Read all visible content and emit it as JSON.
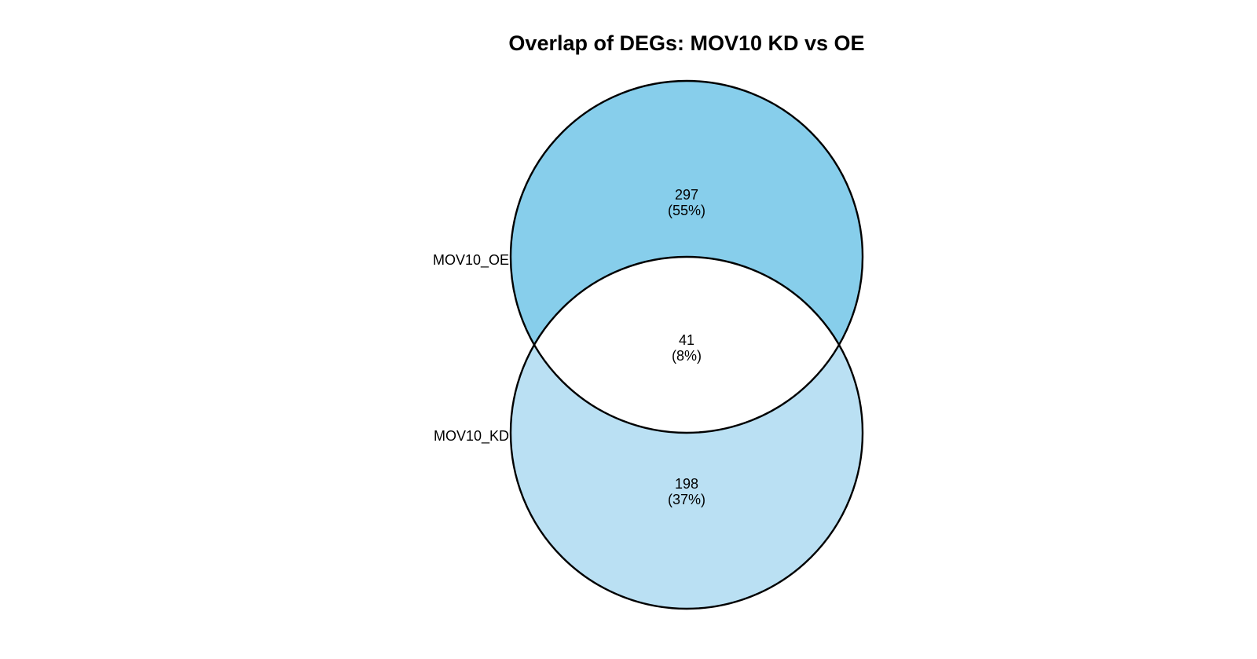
{
  "title": "Overlap of DEGs: MOV10 KD vs OE",
  "colors": {
    "set_a_fill": "#87CEEB",
    "set_b_fill": "#BAE0F3",
    "intersection_fill": "#FFFFFF",
    "outline": "#000000"
  },
  "sets": [
    {
      "name": "MOV10_OE",
      "only_count": "297",
      "only_percent": "(55%)"
    },
    {
      "name": "MOV10_KD",
      "only_count": "198",
      "only_percent": "(37%)"
    }
  ],
  "intersection": {
    "count": "41",
    "percent": "(8%)"
  }
}
